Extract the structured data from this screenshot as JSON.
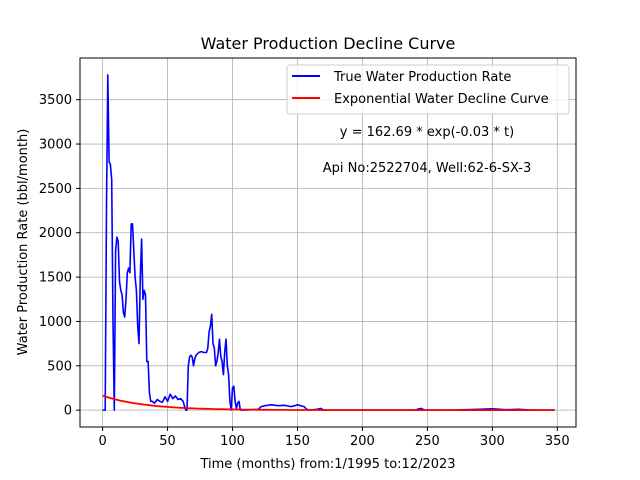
{
  "chart_data": {
    "type": "line",
    "title": "Water Production Decline Curve",
    "xlabel": "Time (months) from:1/1995 to:12/2023",
    "ylabel": "Water Production Rate (bbl/month)",
    "xlim": [
      -17.4,
      364.4
    ],
    "ylim": [
      -190,
      3970
    ],
    "xticks": [
      0,
      50,
      100,
      150,
      200,
      250,
      300,
      350
    ],
    "yticks": [
      0,
      500,
      1000,
      1500,
      2000,
      2500,
      3000,
      3500
    ],
    "grid": true,
    "legend_position": "top-right",
    "annotations": [
      "y = 162.69 * exp(-0.03 * t)",
      "Api No:2522704, Well:62-6-SX-3"
    ],
    "series": [
      {
        "name": "True Water Production Rate",
        "color": "#0000ff",
        "points": [
          [
            0,
            0
          ],
          [
            2,
            0
          ],
          [
            3,
            2300
          ],
          [
            4,
            3780
          ],
          [
            5,
            2800
          ],
          [
            6,
            2770
          ],
          [
            7,
            2600
          ],
          [
            8,
            1000
          ],
          [
            9,
            0
          ],
          [
            10,
            1800
          ],
          [
            11,
            1950
          ],
          [
            12,
            1900
          ],
          [
            13,
            1450
          ],
          [
            14,
            1350
          ],
          [
            15,
            1300
          ],
          [
            16,
            1100
          ],
          [
            17,
            1050
          ],
          [
            18,
            1250
          ],
          [
            19,
            1550
          ],
          [
            20,
            1600
          ],
          [
            21,
            1550
          ],
          [
            22,
            2100
          ],
          [
            23,
            2100
          ],
          [
            24,
            1800
          ],
          [
            25,
            1500
          ],
          [
            26,
            1350
          ],
          [
            27,
            950
          ],
          [
            28,
            750
          ],
          [
            29,
            1500
          ],
          [
            30,
            1930
          ],
          [
            31,
            1250
          ],
          [
            32,
            1350
          ],
          [
            33,
            1300
          ],
          [
            34,
            550
          ],
          [
            35,
            550
          ],
          [
            36,
            200
          ],
          [
            37,
            100
          ],
          [
            38,
            100
          ],
          [
            40,
            80
          ],
          [
            42,
            120
          ],
          [
            44,
            100
          ],
          [
            46,
            90
          ],
          [
            48,
            150
          ],
          [
            50,
            100
          ],
          [
            52,
            180
          ],
          [
            54,
            130
          ],
          [
            56,
            160
          ],
          [
            58,
            120
          ],
          [
            60,
            130
          ],
          [
            62,
            100
          ],
          [
            63,
            50
          ],
          [
            64,
            0
          ],
          [
            65,
            0
          ],
          [
            66,
            500
          ],
          [
            67,
            600
          ],
          [
            68,
            620
          ],
          [
            69,
            600
          ],
          [
            70,
            500
          ],
          [
            71,
            580
          ],
          [
            72,
            620
          ],
          [
            74,
            650
          ],
          [
            76,
            660
          ],
          [
            78,
            650
          ],
          [
            80,
            650
          ],
          [
            81,
            700
          ],
          [
            82,
            880
          ],
          [
            83,
            950
          ],
          [
            84,
            1080
          ],
          [
            85,
            750
          ],
          [
            86,
            700
          ],
          [
            87,
            500
          ],
          [
            88,
            550
          ],
          [
            89,
            650
          ],
          [
            90,
            800
          ],
          [
            91,
            600
          ],
          [
            92,
            550
          ],
          [
            93,
            400
          ],
          [
            94,
            650
          ],
          [
            95,
            800
          ],
          [
            96,
            500
          ],
          [
            97,
            400
          ],
          [
            98,
            100
          ],
          [
            99,
            0
          ],
          [
            100,
            250
          ],
          [
            101,
            270
          ],
          [
            102,
            100
          ],
          [
            103,
            20
          ],
          [
            104,
            80
          ],
          [
            105,
            100
          ],
          [
            106,
            0
          ],
          [
            110,
            0
          ],
          [
            120,
            10
          ],
          [
            122,
            40
          ],
          [
            125,
            50
          ],
          [
            130,
            60
          ],
          [
            135,
            50
          ],
          [
            140,
            55
          ],
          [
            145,
            40
          ],
          [
            148,
            50
          ],
          [
            150,
            60
          ],
          [
            155,
            40
          ],
          [
            157,
            10
          ],
          [
            160,
            0
          ],
          [
            165,
            10
          ],
          [
            168,
            20
          ],
          [
            170,
            0
          ],
          [
            180,
            0
          ],
          [
            200,
            0
          ],
          [
            240,
            0
          ],
          [
            245,
            20
          ],
          [
            248,
            0
          ],
          [
            270,
            0
          ],
          [
            290,
            10
          ],
          [
            300,
            15
          ],
          [
            310,
            5
          ],
          [
            320,
            10
          ],
          [
            330,
            0
          ],
          [
            348,
            0
          ]
        ]
      },
      {
        "name": "Exponential Water Decline Curve",
        "color": "#ff0000",
        "equation": {
          "a": 162.69,
          "b": 0.03
        },
        "t_range": [
          0,
          348
        ]
      }
    ]
  }
}
